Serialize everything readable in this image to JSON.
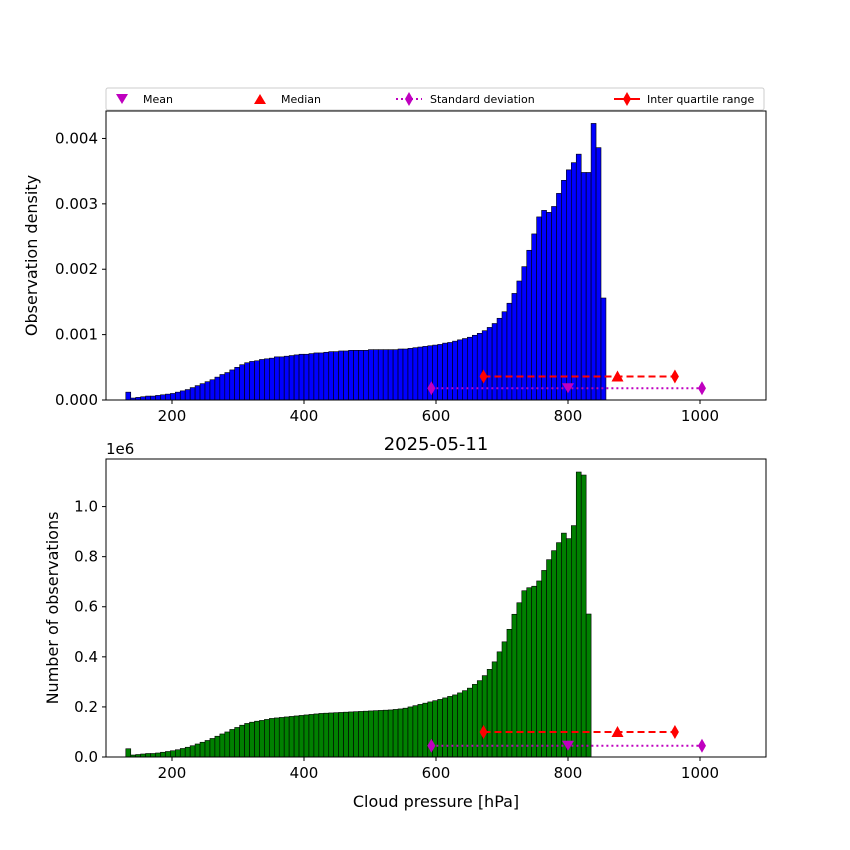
{
  "chart_data": [
    {
      "type": "bar",
      "ylabel": "Observation density",
      "xlabel": "",
      "xlim": [
        100,
        1100
      ],
      "ylim": [
        0,
        0.00442
      ],
      "xticks": [
        200,
        400,
        600,
        800,
        1000
      ],
      "yticks": [
        0,
        0.001,
        0.002,
        0.003,
        0.004
      ],
      "ytick_labels": [
        "0.000",
        "0.001",
        "0.002",
        "0.003",
        "0.004"
      ],
      "bar_color": "#0000ff",
      "bin_width": 7.5,
      "bin_start": 130,
      "values": [
        0.00012,
        3e-05,
        4e-05,
        5e-05,
        6e-05,
        6e-05,
        7e-05,
        8e-05,
        9e-05,
        0.0001,
        0.00012,
        0.00014,
        0.00016,
        0.00019,
        0.00022,
        0.00025,
        0.00028,
        0.00031,
        0.00035,
        0.00039,
        0.00042,
        0.00046,
        0.0005,
        0.00054,
        0.00057,
        0.00059,
        0.0006,
        0.00062,
        0.00063,
        0.00064,
        0.00066,
        0.00066,
        0.00067,
        0.00068,
        0.00069,
        0.0007,
        0.0007,
        0.00071,
        0.00072,
        0.00072,
        0.00073,
        0.00074,
        0.00074,
        0.00075,
        0.00075,
        0.00076,
        0.00076,
        0.00076,
        0.00076,
        0.00077,
        0.00077,
        0.00077,
        0.00077,
        0.00077,
        0.00077,
        0.00078,
        0.00078,
        0.00079,
        0.0008,
        0.00081,
        0.00082,
        0.00083,
        0.00084,
        0.00085,
        0.00087,
        0.00088,
        0.0009,
        0.00092,
        0.00094,
        0.00096,
        0.00099,
        0.00102,
        0.00106,
        0.00111,
        0.00117,
        0.00125,
        0.00135,
        0.00148,
        0.00163,
        0.00182,
        0.00204,
        0.00229,
        0.00254,
        0.0028,
        0.0029,
        0.00287,
        0.00296,
        0.00316,
        0.00336,
        0.00352,
        0.00363,
        0.00376,
        0.00348,
        0.00348,
        0.00423,
        0.00386,
        0.00156
      ],
      "stats": {
        "mean": 800,
        "median": 875,
        "std_range": [
          593,
          1003
        ],
        "iqr_range": [
          672,
          962
        ],
        "std_y": 0.00018,
        "iqr_y": 0.00036
      },
      "legend": {
        "placement": "top",
        "entries": [
          "Mean",
          "Median",
          "Standard deviation",
          "Inter quartile range"
        ]
      }
    },
    {
      "type": "bar",
      "title": "2025-05-11",
      "xlabel": "Cloud pressure [hPa]",
      "ylabel": "Number of observations",
      "offset_label": "1e6",
      "xlim": [
        100,
        1100
      ],
      "ylim": [
        0,
        1.19
      ],
      "xticks": [
        200,
        400,
        600,
        800,
        1000
      ],
      "yticks": [
        0,
        0.2,
        0.4,
        0.6,
        0.8,
        1.0
      ],
      "ytick_labels": [
        "0.0",
        "0.2",
        "0.4",
        "0.6",
        "0.8",
        "1.0"
      ],
      "bar_color": "#008000",
      "bin_width": 7.5,
      "bin_start": 130,
      "values": [
        0.033,
        0.008,
        0.01,
        0.012,
        0.014,
        0.014,
        0.016,
        0.019,
        0.022,
        0.025,
        0.029,
        0.034,
        0.039,
        0.045,
        0.052,
        0.059,
        0.066,
        0.074,
        0.083,
        0.092,
        0.1,
        0.11,
        0.118,
        0.127,
        0.134,
        0.139,
        0.143,
        0.146,
        0.15,
        0.154,
        0.156,
        0.158,
        0.16,
        0.162,
        0.164,
        0.166,
        0.168,
        0.17,
        0.172,
        0.174,
        0.175,
        0.176,
        0.177,
        0.178,
        0.179,
        0.18,
        0.181,
        0.182,
        0.183,
        0.184,
        0.185,
        0.186,
        0.187,
        0.188,
        0.19,
        0.192,
        0.195,
        0.2,
        0.205,
        0.21,
        0.215,
        0.22,
        0.225,
        0.23,
        0.236,
        0.242,
        0.248,
        0.256,
        0.265,
        0.275,
        0.29,
        0.305,
        0.325,
        0.35,
        0.38,
        0.42,
        0.46,
        0.51,
        0.57,
        0.616,
        0.664,
        0.676,
        0.682,
        0.703,
        0.745,
        0.788,
        0.824,
        0.856,
        0.894,
        0.872,
        0.924,
        1.138,
        1.126,
        0.571
      ],
      "stats": {
        "mean": 800,
        "median": 875,
        "std_range": [
          593,
          1003
        ],
        "iqr_range": [
          672,
          962
        ],
        "std_y": 0.045,
        "iqr_y": 0.1
      }
    }
  ],
  "colors": {
    "mean": "#bf00bf",
    "median": "#ff0000",
    "std": "#bf00bf",
    "iqr": "#ff0000"
  }
}
